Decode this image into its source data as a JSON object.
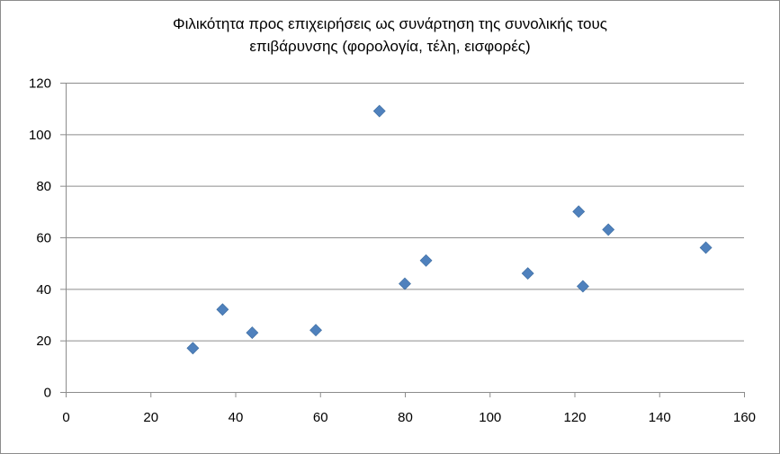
{
  "chart_data": {
    "type": "scatter",
    "title_lines": [
      "Φιλικότητα προς επιχειρήσεις ως συνάρτηση της συνολικής τους",
      "επιβάρυνσης (φορολογία, τέλη, εισφορές)"
    ],
    "xlabel": "",
    "ylabel": "",
    "xlim": [
      0,
      160
    ],
    "ylim": [
      0,
      120
    ],
    "x_ticks": [
      0,
      20,
      40,
      60,
      80,
      100,
      120,
      140,
      160
    ],
    "y_ticks": [
      0,
      20,
      40,
      60,
      80,
      100,
      120
    ],
    "grid": "horizontal",
    "legend": "none",
    "marker": "diamond",
    "color": "#4f81bd",
    "points": [
      {
        "x": 30,
        "y": 17
      },
      {
        "x": 37,
        "y": 32
      },
      {
        "x": 44,
        "y": 23
      },
      {
        "x": 59,
        "y": 24
      },
      {
        "x": 74,
        "y": 109
      },
      {
        "x": 80,
        "y": 42
      },
      {
        "x": 85,
        "y": 51
      },
      {
        "x": 109,
        "y": 46
      },
      {
        "x": 121,
        "y": 70
      },
      {
        "x": 122,
        "y": 41
      },
      {
        "x": 128,
        "y": 63
      },
      {
        "x": 151,
        "y": 56
      }
    ]
  }
}
